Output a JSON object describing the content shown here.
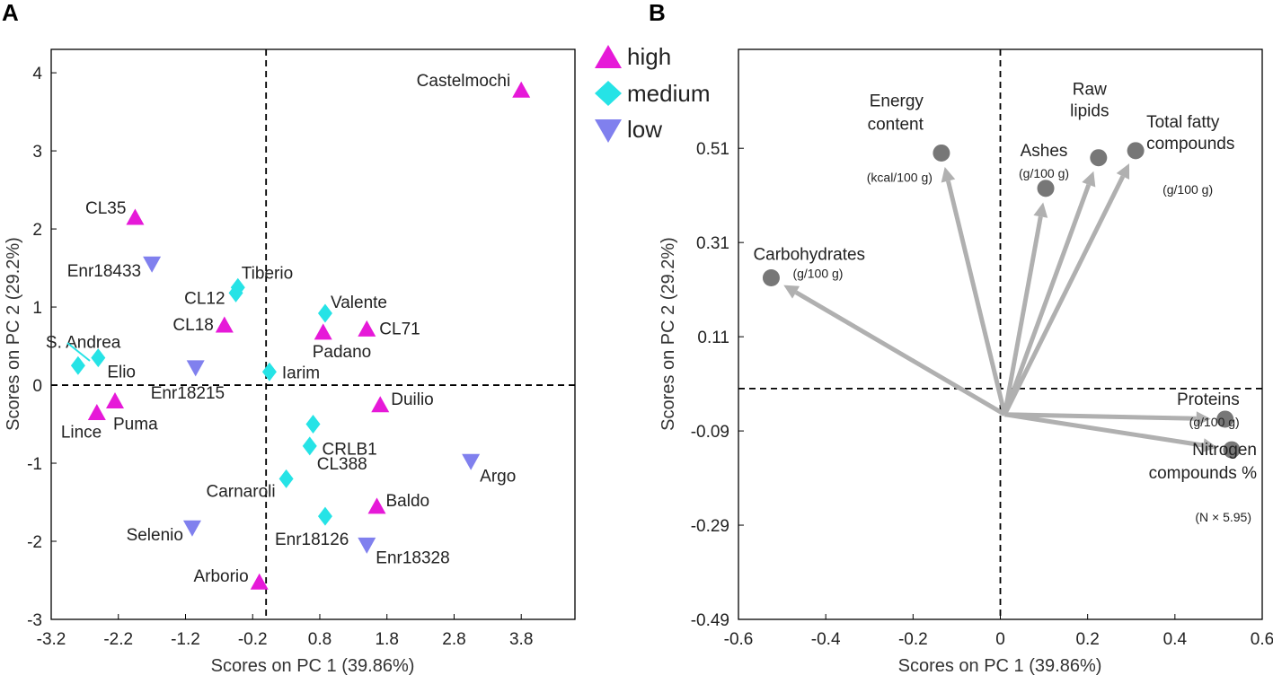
{
  "colors": {
    "high": "#e619d8",
    "medium": "#26e3e6",
    "low": "#8080ee",
    "loading_marker": "#777777",
    "loading_arrow": "#b0b0b0"
  },
  "chart_data": [
    {
      "panel": "A",
      "type": "scatter",
      "xlabel": "Scores on PC 1 (39.86%)",
      "ylabel": "Scores on PC 2 (29.2%)",
      "xlim": [
        -3.2,
        4.6
      ],
      "ylim": [
        -3,
        4.3
      ],
      "xticks": [
        "-3.2",
        "-2.2",
        "-1.2",
        "-0.2",
        "0.8",
        "1.8",
        "2.8",
        "3.8"
      ],
      "yticks": [
        "-3",
        "-2",
        "-1",
        "0",
        "1",
        "2",
        "3",
        "4"
      ],
      "legend": [
        {
          "key": "high",
          "label": "high"
        },
        {
          "key": "medium",
          "label": "medium"
        },
        {
          "key": "low",
          "label": "low"
        }
      ],
      "points": [
        {
          "label": "Castelmochi",
          "x": 3.8,
          "y": 3.78,
          "group": "high"
        },
        {
          "label": "CL35",
          "x": -1.95,
          "y": 2.15,
          "group": "high"
        },
        {
          "label": "Enr18433",
          "x": -1.7,
          "y": 1.55,
          "group": "low"
        },
        {
          "label": "Tiberio",
          "x": -0.42,
          "y": 1.25,
          "group": "medium"
        },
        {
          "label": "CL12",
          "x": -0.45,
          "y": 1.18,
          "group": "medium"
        },
        {
          "label": "Valente",
          "x": 0.88,
          "y": 0.92,
          "group": "medium"
        },
        {
          "label": "CL18",
          "x": -0.62,
          "y": 0.77,
          "group": "high"
        },
        {
          "label": "CL71",
          "x": 1.5,
          "y": 0.72,
          "group": "high"
        },
        {
          "label": "Padano",
          "x": 0.85,
          "y": 0.68,
          "group": "high"
        },
        {
          "label": "S. Andrea",
          "x": -2.8,
          "y": 0.25,
          "group": "medium"
        },
        {
          "label": "Elio",
          "x": -2.5,
          "y": 0.35,
          "group": "medium"
        },
        {
          "label": "Enr18215",
          "x": -1.05,
          "y": 0.22,
          "group": "low"
        },
        {
          "label": "Iarim",
          "x": 0.05,
          "y": 0.17,
          "group": "medium"
        },
        {
          "label": "Duilio",
          "x": 1.7,
          "y": -0.25,
          "group": "high"
        },
        {
          "label": "Puma",
          "x": -2.25,
          "y": -0.2,
          "group": "high"
        },
        {
          "label": "Lince",
          "x": -2.52,
          "y": -0.35,
          "group": "high"
        },
        {
          "label": "CRLB1",
          "x": 0.7,
          "y": -0.5,
          "group": "medium"
        },
        {
          "label": "CL388",
          "x": 0.65,
          "y": -0.78,
          "group": "medium"
        },
        {
          "label": "Argo",
          "x": 3.05,
          "y": -0.98,
          "group": "low"
        },
        {
          "label": "Carnaroli",
          "x": 0.3,
          "y": -1.2,
          "group": "medium"
        },
        {
          "label": "Baldo",
          "x": 1.65,
          "y": -1.55,
          "group": "high"
        },
        {
          "label": "Enr18126",
          "x": 0.88,
          "y": -1.68,
          "group": "medium"
        },
        {
          "label": "Selenio",
          "x": -1.1,
          "y": -1.83,
          "group": "low"
        },
        {
          "label": "Enr18328",
          "x": 1.5,
          "y": -2.05,
          "group": "low"
        },
        {
          "label": "Arborio",
          "x": -0.1,
          "y": -2.52,
          "group": "high"
        }
      ]
    },
    {
      "panel": "B",
      "type": "biplot",
      "xlabel": "Scores on PC 1 (39.86%)",
      "ylabel": "Scores on PC 2 (29.2%)",
      "xlim": [
        -0.6,
        0.6
      ],
      "ylim": [
        -0.49,
        0.72
      ],
      "xticks": [
        "-0.6",
        "-0.4",
        "-0.2",
        "0",
        "0.2",
        "0.4",
        "0.6"
      ],
      "yticks": [
        "0.51",
        "0.31",
        "0.11",
        "-0.09",
        "-0.29",
        "-0.49"
      ],
      "origin": [
        0.01,
        -0.055
      ],
      "loadings": [
        {
          "name": [
            "Energy",
            "content"
          ],
          "unit": "(kcal/100 g)",
          "x": -0.135,
          "y": 0.5
        },
        {
          "name": [
            "Ashes"
          ],
          "unit": "(g/100 g)",
          "x": 0.104,
          "y": 0.425
        },
        {
          "name": [
            "Raw",
            "lipids"
          ],
          "unit": "",
          "x": 0.225,
          "y": 0.49
        },
        {
          "name": [
            "Total fatty",
            "compounds"
          ],
          "unit": "(g/100 g)",
          "x": 0.31,
          "y": 0.505
        },
        {
          "name": [
            "Carbohydrates"
          ],
          "unit": "(g/100 g)",
          "x": -0.525,
          "y": 0.235
        },
        {
          "name": [
            "Proteins"
          ],
          "unit": "(g/100 g)",
          "x": 0.515,
          "y": -0.065
        },
        {
          "name": [
            "Nitrogen",
            "compounds %"
          ],
          "unit": "(N × 5.95)",
          "x": 0.53,
          "y": -0.13
        }
      ]
    }
  ]
}
